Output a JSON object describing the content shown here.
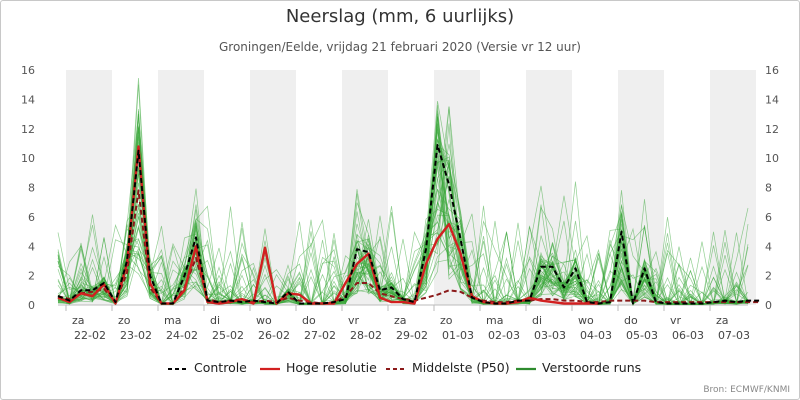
{
  "chart_data": {
    "type": "line",
    "title": "Neerslag (mm, 6 uurlijks)",
    "subtitle": "Groningen/Eelde, vrijdag 21 februari 2020 (Versie vr 12 uur)",
    "source": "Bron: ECMWF/KNMI",
    "ylim": [
      0,
      16
    ],
    "yticks": [
      0,
      2,
      4,
      6,
      8,
      10,
      12,
      14,
      16
    ],
    "grid": "alternating day bands",
    "legend_position": "bottom",
    "days": [
      {
        "dow": "za",
        "date": "22-02"
      },
      {
        "dow": "zo",
        "date": "23-02"
      },
      {
        "dow": "ma",
        "date": "24-02"
      },
      {
        "dow": "di",
        "date": "25-02"
      },
      {
        "dow": "wo",
        "date": "26-02"
      },
      {
        "dow": "do",
        "date": "27-02"
      },
      {
        "dow": "vr",
        "date": "28-02"
      },
      {
        "dow": "za",
        "date": "29-02"
      },
      {
        "dow": "zo",
        "date": "01-03"
      },
      {
        "dow": "ma",
        "date": "02-03"
      },
      {
        "dow": "di",
        "date": "03-03"
      },
      {
        "dow": "wo",
        "date": "04-03"
      },
      {
        "dow": "do",
        "date": "05-03"
      },
      {
        "dow": "vr",
        "date": "06-03"
      },
      {
        "dow": "za",
        "date": "07-03"
      }
    ],
    "series": [
      {
        "name": "Controle",
        "color": "#000000",
        "style": "dashed",
        "values": [
          0.6,
          0.3,
          1.0,
          1.0,
          1.5,
          0.2,
          3.0,
          10.5,
          2.0,
          0.1,
          0.1,
          2.0,
          4.6,
          0.3,
          0.2,
          0.3,
          0.2,
          0.3,
          0.2,
          0.1,
          0.9,
          0.1,
          0.1,
          0.1,
          0.2,
          0.4,
          3.8,
          3.6,
          1.0,
          1.2,
          0.4,
          0.2,
          3.8,
          10.9,
          8.2,
          4.5,
          0.5,
          0.2,
          0.1,
          0.1,
          0.3,
          0.3,
          2.6,
          2.6,
          1.2,
          2.5,
          0.2,
          0.1,
          0.2,
          5.0,
          0.1,
          2.5,
          0.2,
          0.1,
          0.1,
          0.1,
          0.1,
          0.2,
          0.3,
          0.2,
          0.3,
          0.3
        ]
      },
      {
        "name": "Hoge resolutie",
        "color": "#d22020",
        "style": "solid",
        "values": [
          0.5,
          0.2,
          0.8,
          0.6,
          1.4,
          0.1,
          2.8,
          10.8,
          1.5,
          0.1,
          0.1,
          1.0,
          4.0,
          0.2,
          0.1,
          0.2,
          0.4,
          0.1,
          3.9,
          0.1,
          0.8,
          0.7,
          0.1,
          0.1,
          0.1,
          1.5,
          2.8,
          3.5,
          0.5,
          0.2,
          0.2,
          0.1,
          2.8,
          4.5,
          5.5,
          3.5,
          0.6,
          0.2,
          0.1,
          0.1,
          0.2,
          0.5,
          0.3,
          0.2,
          0.1,
          0.1,
          0.1,
          0.1
        ]
      },
      {
        "name": "Middelste (P50)",
        "color": "#8b1a1a",
        "style": "dashed",
        "values": [
          0.6,
          0.4,
          0.8,
          0.9,
          1.1,
          0.2,
          2.2,
          7.8,
          1.2,
          0.1,
          0.1,
          1.2,
          3.2,
          0.4,
          0.2,
          0.3,
          0.4,
          0.2,
          0.3,
          0.2,
          0.5,
          0.3,
          0.2,
          0.1,
          0.2,
          0.6,
          1.5,
          1.5,
          0.8,
          0.6,
          0.4,
          0.3,
          0.5,
          0.7,
          1.0,
          0.9,
          0.5,
          0.3,
          0.2,
          0.2,
          0.3,
          0.3,
          0.4,
          0.4,
          0.3,
          0.3,
          0.2,
          0.2,
          0.3,
          0.3,
          0.3,
          0.3,
          0.2,
          0.2,
          0.2,
          0.2,
          0.2,
          0.2,
          0.2,
          0.2,
          0.2,
          0.2
        ]
      },
      {
        "name": "Verstoorde runs",
        "color": "#2e8b2e",
        "style": "solid",
        "members": 50
      }
    ]
  }
}
